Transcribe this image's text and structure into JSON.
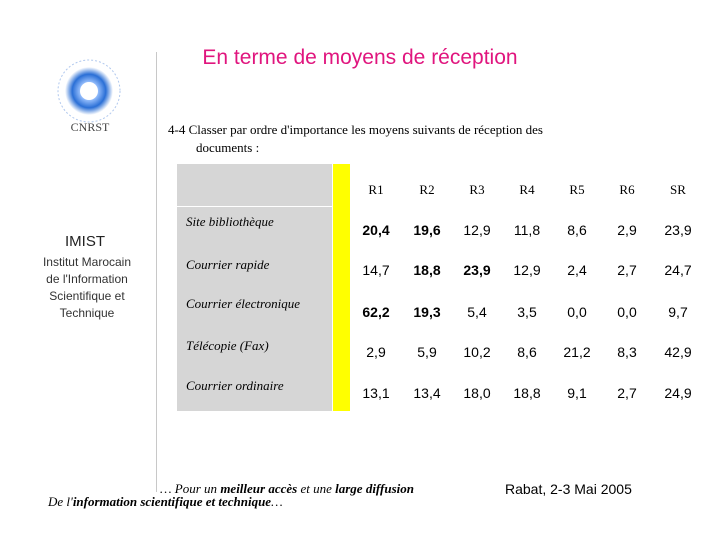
{
  "title": "En terme de moyens de réception",
  "logo": {
    "text": "CNRST",
    "colors": {
      "primary": "#2a6fd6",
      "light": "#9ec4ff"
    }
  },
  "institution": {
    "acronym": "IMIST",
    "lines": [
      "Institut Marocain",
      "de l'Information",
      "Scientifique et",
      "Technique"
    ]
  },
  "question": {
    "line1": "4-4  Classer par ordre d'importance les moyens suivants de réception des",
    "line2": "documents :"
  },
  "table": {
    "columns": [
      "R1",
      "R2",
      "R3",
      "R4",
      "R5",
      "R6",
      "SR"
    ],
    "rows": [
      {
        "label": "Site bibliothèque",
        "values": [
          "20,4",
          "19,6",
          "12,9",
          "11,8",
          "8,6",
          "2,9",
          "23,9"
        ],
        "bold": [
          true,
          true,
          false,
          false,
          false,
          false,
          false
        ]
      },
      {
        "label": "Courrier rapide",
        "values": [
          "14,7",
          "18,8",
          "23,9",
          "12,9",
          "2,4",
          "2,7",
          "24,7"
        ],
        "bold": [
          false,
          true,
          true,
          false,
          false,
          false,
          false
        ]
      },
      {
        "label": "Courrier électronique",
        "values": [
          "62,2",
          "19,3",
          "5,4",
          "3,5",
          "0,0",
          "0,0",
          "9,7"
        ],
        "bold": [
          true,
          true,
          false,
          false,
          false,
          false,
          false
        ]
      },
      {
        "label": "Télécopie (Fax)",
        "values": [
          "2,9",
          "5,9",
          "10,2",
          "8,6",
          "21,2",
          "8,3",
          "42,9"
        ],
        "bold": [
          false,
          false,
          false,
          false,
          false,
          false,
          false
        ]
      },
      {
        "label": "Courrier ordinaire",
        "values": [
          "13,1",
          "13,4",
          "18,0",
          "18,8",
          "9,1",
          "2,7",
          "24,9"
        ],
        "bold": [
          false,
          false,
          false,
          false,
          false,
          false,
          false
        ]
      }
    ]
  },
  "footer": {
    "line1_a": "… Pour un ",
    "line1_b": "meilleur accès",
    "line1_c": " et une ",
    "line1_d": "large diffusion",
    "line2_a": "De l'",
    "line2_b": "information scientifique et technique",
    "line2_c": "…"
  },
  "event": "Rabat, 2-3 Mai 2005",
  "colors": {
    "title": "#e0157e",
    "highlight": "#ffff00",
    "label_bg": "#d6d6d6"
  }
}
